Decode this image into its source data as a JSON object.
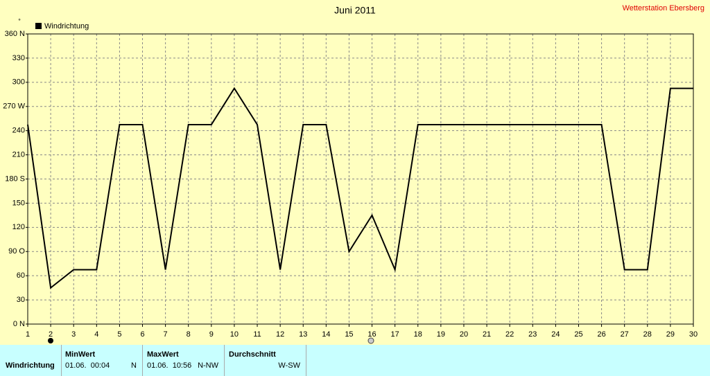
{
  "chart_data": {
    "type": "line",
    "title": "Juni 2011",
    "subtitle": "Wetterstation Ebersberg",
    "y_unit": "°",
    "categories": [
      1,
      2,
      3,
      4,
      5,
      6,
      7,
      8,
      9,
      10,
      11,
      12,
      13,
      14,
      15,
      16,
      17,
      18,
      19,
      20,
      21,
      22,
      23,
      24,
      25,
      26,
      27,
      28,
      29,
      30
    ],
    "series": [
      {
        "name": "Windrichtung",
        "color": "#000000",
        "values": [
          247.5,
          45,
          67.5,
          67.5,
          247.5,
          247.5,
          67.5,
          247.5,
          247.5,
          292.5,
          247.5,
          67.5,
          247.5,
          247.5,
          90,
          135,
          67.5,
          247.5,
          247.5,
          247.5,
          247.5,
          247.5,
          247.5,
          247.5,
          247.5,
          247.5,
          67.5,
          67.5,
          292.5,
          292.5
        ]
      }
    ],
    "ylim": [
      0,
      360
    ],
    "yticks": [
      {
        "value": 0,
        "label": "0 N"
      },
      30,
      60,
      {
        "value": 90,
        "label": "90 O"
      },
      120,
      150,
      {
        "value": 180,
        "label": "180 S"
      },
      210,
      240,
      {
        "value": 270,
        "label": "270 W"
      },
      300,
      330,
      {
        "value": 360,
        "label": "360 N"
      }
    ],
    "grid": true,
    "legend": "top-left"
  },
  "table": {
    "headers": [
      "MinWert",
      "MaxWert",
      "Durchschnitt"
    ],
    "rows": [
      [
        "Windrichtung",
        "01.06.  00:04",
        "N",
        "01.06.  10:56",
        "N-NW",
        "W-SW"
      ]
    ]
  }
}
